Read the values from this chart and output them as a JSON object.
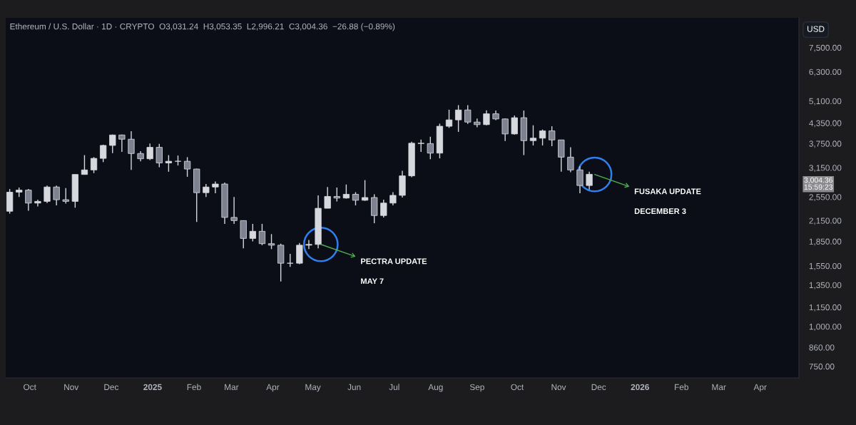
{
  "chart_data": {
    "type": "candlestick",
    "title": "Ethereum / U.S. Dollar · 1D · CRYPTO  O3,031.24  H3,053.35  L2,996.21  C3,004.36  −26.88 (−0.89%)",
    "color": "#d6d8de",
    "x": [
      "2024-09-16",
      "2024-09-23",
      "2024-09-30",
      "2024-10-07",
      "2024-10-14",
      "2024-10-21",
      "2024-10-28",
      "2024-11-04",
      "2024-11-11",
      "2024-11-18",
      "2024-11-25",
      "2024-12-02",
      "2024-12-09",
      "2024-12-16",
      "2024-12-23",
      "2024-12-30",
      "2025-01-06",
      "2025-01-13",
      "2025-01-20",
      "2025-01-27",
      "2025-02-03",
      "2025-02-10",
      "2025-02-17",
      "2025-02-24",
      "2025-03-03",
      "2025-03-10",
      "2025-03-17",
      "2025-03-24",
      "2025-03-31",
      "2025-04-07",
      "2025-04-14",
      "2025-04-21",
      "2025-04-28",
      "2025-05-05",
      "2025-05-12",
      "2025-05-19",
      "2025-05-26",
      "2025-06-02",
      "2025-06-09",
      "2025-06-16",
      "2025-06-23",
      "2025-06-30",
      "2025-07-07",
      "2025-07-14",
      "2025-07-21",
      "2025-07-28",
      "2025-08-04",
      "2025-08-11",
      "2025-08-18",
      "2025-08-25",
      "2025-09-01",
      "2025-09-08",
      "2025-09-15",
      "2025-09-22",
      "2025-09-29",
      "2025-10-06",
      "2025-10-13",
      "2025-10-20",
      "2025-10-27",
      "2025-11-03",
      "2025-11-10",
      "2025-11-17",
      "2025-11-24"
    ],
    "ohlc": [
      [
        2300,
        2700,
        2260,
        2640
      ],
      [
        2640,
        2730,
        2550,
        2680
      ],
      [
        2680,
        2700,
        2310,
        2440
      ],
      [
        2440,
        2500,
        2380,
        2470
      ],
      [
        2470,
        2770,
        2440,
        2740
      ],
      [
        2740,
        2770,
        2400,
        2500
      ],
      [
        2500,
        2720,
        2430,
        2470
      ],
      [
        2470,
        3000,
        2360,
        3000
      ],
      [
        3000,
        3450,
        3000,
        3100
      ],
      [
        3100,
        3400,
        3030,
        3370
      ],
      [
        3370,
        3720,
        3280,
        3700
      ],
      [
        3700,
        4000,
        3500,
        3990
      ],
      [
        3990,
        4000,
        3530,
        3870
      ],
      [
        3870,
        4100,
        3100,
        3490
      ],
      [
        3490,
        3550,
        3300,
        3360
      ],
      [
        3360,
        3750,
        3330,
        3650
      ],
      [
        3650,
        3740,
        3160,
        3260
      ],
      [
        3260,
        3450,
        3060,
        3300
      ],
      [
        3300,
        3440,
        3200,
        3300
      ],
      [
        3300,
        3400,
        2950,
        3120
      ],
      [
        3120,
        3130,
        2130,
        2630
      ],
      [
        2630,
        2800,
        2550,
        2740
      ],
      [
        2740,
        2850,
        2620,
        2800
      ],
      [
        2800,
        2830,
        2100,
        2200
      ],
      [
        2200,
        2550,
        2100,
        2150
      ],
      [
        2150,
        2150,
        1760,
        1890
      ],
      [
        1890,
        2100,
        1850,
        1990
      ],
      [
        1990,
        2100,
        1800,
        1820
      ],
      [
        1820,
        1950,
        1750,
        1800
      ],
      [
        1800,
        1820,
        1385,
        1580
      ],
      [
        1580,
        1690,
        1540,
        1580
      ],
      [
        1580,
        1830,
        1570,
        1800
      ],
      [
        1800,
        1870,
        1750,
        1810
      ],
      [
        1810,
        2580,
        1760,
        2350
      ],
      [
        2350,
        2740,
        2350,
        2560
      ],
      [
        2560,
        2730,
        2470,
        2530
      ],
      [
        2530,
        2790,
        2520,
        2600
      ],
      [
        2600,
        2640,
        2400,
        2490
      ],
      [
        2490,
        2880,
        2480,
        2540
      ],
      [
        2540,
        2600,
        2110,
        2230
      ],
      [
        2230,
        2500,
        2200,
        2440
      ],
      [
        2440,
        2640,
        2400,
        2580
      ],
      [
        2580,
        3080,
        2540,
        2970
      ],
      [
        2970,
        3800,
        2940,
        3760
      ],
      [
        3760,
        3860,
        3530,
        3750
      ],
      [
        3750,
        3940,
        3350,
        3500
      ],
      [
        3500,
        4330,
        3370,
        4250
      ],
      [
        4250,
        4790,
        4200,
        4450
      ],
      [
        4450,
        4950,
        4080,
        4780
      ],
      [
        4780,
        4950,
        4320,
        4380
      ],
      [
        4380,
        4490,
        4220,
        4300
      ],
      [
        4300,
        4770,
        4280,
        4650
      ],
      [
        4650,
        4760,
        4440,
        4480
      ],
      [
        4480,
        4500,
        3820,
        4020
      ],
      [
        4020,
        4590,
        4000,
        4520
      ],
      [
        4520,
        4760,
        3450,
        3830
      ],
      [
        3830,
        4280,
        3700,
        3900
      ],
      [
        3900,
        4150,
        3700,
        4110
      ],
      [
        4110,
        4250,
        3680,
        3850
      ],
      [
        3850,
        3850,
        3060,
        3400
      ],
      [
        3400,
        3650,
        3050,
        3100
      ],
      [
        3100,
        3180,
        2620,
        2770
      ],
      [
        2770,
        3060,
        2690,
        3004.36
      ]
    ],
    "log": true,
    "ylim": [
      690,
      9300
    ],
    "yticks": [
      {
        "value": 750,
        "label": "750.00"
      },
      {
        "value": 860,
        "label": "860.00"
      },
      {
        "value": 1000,
        "label": "1,000.00"
      },
      {
        "value": 1150,
        "label": "1,150.00"
      },
      {
        "value": 1350,
        "label": "1,350.00"
      },
      {
        "value": 1550,
        "label": "1,550.00"
      },
      {
        "value": 1850,
        "label": "1,850.00"
      },
      {
        "value": 2150,
        "label": "2,150.00"
      },
      {
        "value": 2550,
        "label": "2,550.00"
      },
      {
        "value": 3150,
        "label": "3,150.00"
      },
      {
        "value": 3750,
        "label": "3,750.00"
      },
      {
        "value": 4350,
        "label": "4,350.00"
      },
      {
        "value": 5100,
        "label": "5,100.00"
      },
      {
        "value": 6300,
        "label": "6,300.00"
      },
      {
        "value": 7500,
        "label": "7,500.00"
      }
    ],
    "xlim": [
      "2024-09-13",
      "2026-04-30"
    ],
    "xticks": [
      {
        "value": "2024-10-01",
        "label": "Oct"
      },
      {
        "value": "2024-11-01",
        "label": "Nov"
      },
      {
        "value": "2024-12-01",
        "label": "Dec"
      },
      {
        "value": "2025-01-01",
        "label": "2025"
      },
      {
        "value": "2025-02-01",
        "label": "Feb"
      },
      {
        "value": "2025-03-01",
        "label": "Mar"
      },
      {
        "value": "2025-04-01",
        "label": "Apr"
      },
      {
        "value": "2025-05-01",
        "label": "May"
      },
      {
        "value": "2025-06-01",
        "label": "Jun"
      },
      {
        "value": "2025-07-01",
        "label": "Jul"
      },
      {
        "value": "2025-08-01",
        "label": "Aug"
      },
      {
        "value": "2025-09-01",
        "label": "Sep"
      },
      {
        "value": "2025-10-01",
        "label": "Oct"
      },
      {
        "value": "2025-11-01",
        "label": "Nov"
      },
      {
        "value": "2025-12-01",
        "label": "Dec"
      },
      {
        "value": "2026-01-01",
        "label": "2026"
      },
      {
        "value": "2026-02-01",
        "label": "Feb"
      },
      {
        "value": "2026-03-01",
        "label": "Mar"
      },
      {
        "value": "2026-04-01",
        "label": "Apr"
      }
    ],
    "grid": false,
    "annotations": [
      {
        "text": "PECTRA UPDATE",
        "x": "2025-05-07",
        "y": 1810
      },
      "MAY 7",
      {
        "text": "FUSAKA UPDATE",
        "x": "2025-11-28",
        "y": 3000
      },
      "DECEMBER 3",
      "3,004.36",
      "15:59:23",
      "USD"
    ]
  }
}
